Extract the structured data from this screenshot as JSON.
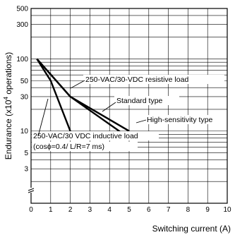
{
  "chart_data": {
    "type": "line",
    "xlabel": "Switching current (A)",
    "ylabel": "Endurance (x10",
    "ylabel_sup": "4",
    "ylabel_suffix": " operations)",
    "xlim": [
      0,
      10
    ],
    "ylim_log": [
      1,
      500
    ],
    "x_ticks": [
      0,
      1,
      2,
      3,
      4,
      5,
      6,
      7,
      8,
      9,
      10
    ],
    "y_ticks": [
      500,
      300,
      100,
      50,
      30,
      10,
      5,
      3
    ],
    "y_scale": "log",
    "grid": true,
    "series": [
      {
        "values": [
          [
            0.3,
            100
          ],
          [
            2,
            30
          ],
          [
            5,
            8
          ]
        ]
      },
      {
        "values": [
          [
            0.3,
            100
          ],
          [
            2,
            30
          ],
          [
            5,
            10
          ]
        ]
      },
      {
        "values": [
          [
            0.3,
            100
          ],
          [
            1,
            50
          ],
          [
            2,
            10
          ]
        ]
      }
    ],
    "annotations": [
      {
        "id": "resistive",
        "text": "250-VAC/30-VDC resistive load"
      },
      {
        "id": "standard",
        "text": "Standard type"
      },
      {
        "id": "highsens",
        "text": "High-sensitivity type"
      },
      {
        "id": "inductive1",
        "text": "250-VAC/30 VDC inductive load"
      },
      {
        "id": "inductive2",
        "text": "(cosϕ=0.4/ L/R=7 ms)"
      }
    ]
  }
}
